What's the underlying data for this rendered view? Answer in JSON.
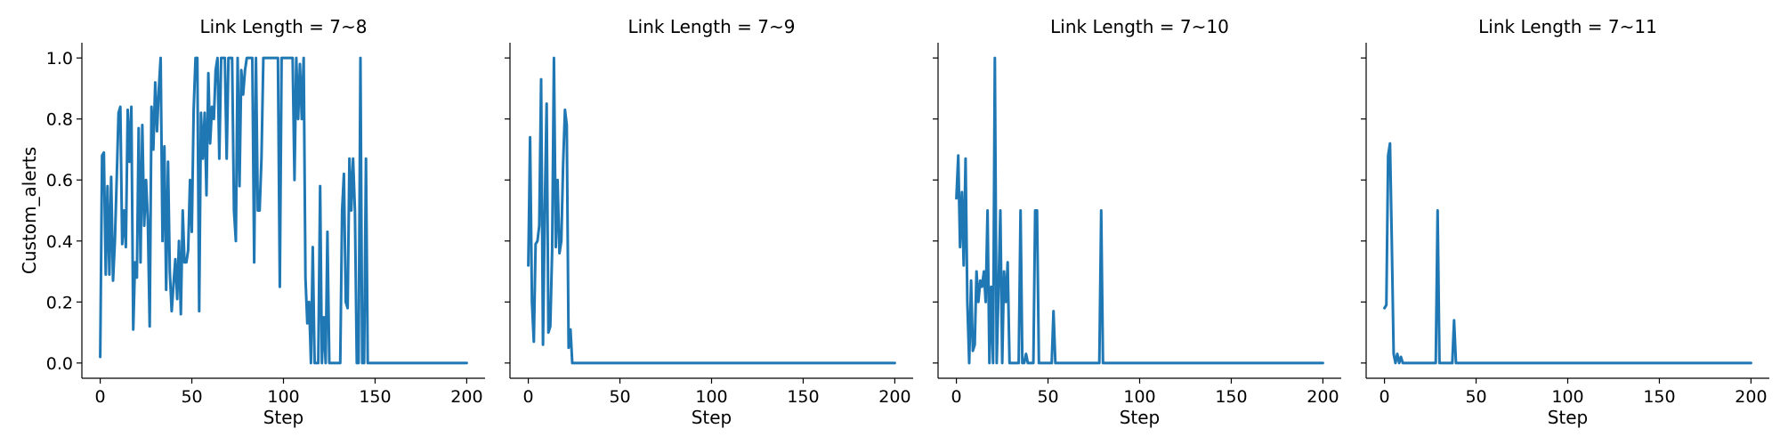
{
  "chart_data": [
    {
      "type": "line",
      "title": "Link Length = 7~8",
      "xlabel": "Step",
      "ylabel": "Custom_alerts",
      "xlim": [
        -10,
        210
      ],
      "ylim": [
        -0.05,
        1.05
      ],
      "xticks": [
        0,
        50,
        100,
        150,
        200
      ],
      "yticks": [
        0.0,
        0.2,
        0.4,
        0.6,
        0.8,
        1.0
      ],
      "show_yticklabels": true,
      "grid": false,
      "color": "#1f77b4",
      "points": [
        [
          0,
          0.02
        ],
        [
          1,
          0.68
        ],
        [
          2,
          0.69
        ],
        [
          3,
          0.29
        ],
        [
          4,
          0.58
        ],
        [
          5,
          0.29
        ],
        [
          6,
          0.61
        ],
        [
          7,
          0.27
        ],
        [
          8,
          0.4
        ],
        [
          9,
          0.6
        ],
        [
          10,
          0.82
        ],
        [
          11,
          0.84
        ],
        [
          12,
          0.39
        ],
        [
          13,
          0.5
        ],
        [
          14,
          0.38
        ],
        [
          15,
          0.83
        ],
        [
          16,
          0.66
        ],
        [
          17,
          0.84
        ],
        [
          18,
          0.11
        ],
        [
          19,
          0.33
        ],
        [
          20,
          0.28
        ],
        [
          21,
          0.77
        ],
        [
          22,
          0.33
        ],
        [
          23,
          0.78
        ],
        [
          24,
          0.45
        ],
        [
          25,
          0.6
        ],
        [
          26,
          0.47
        ],
        [
          27,
          0.12
        ],
        [
          28,
          0.84
        ],
        [
          29,
          0.7
        ],
        [
          30,
          0.92
        ],
        [
          31,
          0.76
        ],
        [
          32,
          0.9
        ],
        [
          33,
          1.0
        ],
        [
          34,
          0.4
        ],
        [
          35,
          0.71
        ],
        [
          36,
          0.24
        ],
        [
          37,
          0.66
        ],
        [
          38,
          0.3
        ],
        [
          39,
          0.17
        ],
        [
          40,
          0.26
        ],
        [
          41,
          0.34
        ],
        [
          42,
          0.21
        ],
        [
          43,
          0.4
        ],
        [
          44,
          0.16
        ],
        [
          45,
          0.5
        ],
        [
          46,
          0.33
        ],
        [
          47,
          0.33
        ],
        [
          48,
          0.37
        ],
        [
          49,
          0.6
        ],
        [
          50,
          0.43
        ],
        [
          51,
          0.83
        ],
        [
          52,
          1.0
        ],
        [
          53,
          1.0
        ],
        [
          54,
          0.17
        ],
        [
          55,
          0.82
        ],
        [
          56,
          0.67
        ],
        [
          57,
          0.82
        ],
        [
          58,
          0.55
        ],
        [
          59,
          0.95
        ],
        [
          60,
          0.72
        ],
        [
          61,
          0.84
        ],
        [
          62,
          0.8
        ],
        [
          63,
          0.96
        ],
        [
          64,
          1.0
        ],
        [
          65,
          0.67
        ],
        [
          66,
          1.0
        ],
        [
          67,
          1.0
        ],
        [
          68,
          1.0
        ],
        [
          69,
          0.67
        ],
        [
          70,
          1.0
        ],
        [
          71,
          1.0
        ],
        [
          72,
          1.0
        ],
        [
          73,
          0.5
        ],
        [
          74,
          0.4
        ],
        [
          75,
          1.0
        ],
        [
          76,
          0.58
        ],
        [
          77,
          0.96
        ],
        [
          78,
          0.88
        ],
        [
          79,
          0.96
        ],
        [
          80,
          1.0
        ],
        [
          81,
          1.0
        ],
        [
          82,
          1.0
        ],
        [
          83,
          1.0
        ],
        [
          84,
          0.33
        ],
        [
          85,
          1.0
        ],
        [
          86,
          0.5
        ],
        [
          87,
          0.5
        ],
        [
          88,
          0.67
        ],
        [
          89,
          1.0
        ],
        [
          90,
          1.0
        ],
        [
          91,
          1.0
        ],
        [
          92,
          1.0
        ],
        [
          93,
          1.0
        ],
        [
          94,
          1.0
        ],
        [
          95,
          1.0
        ],
        [
          96,
          1.0
        ],
        [
          97,
          1.0
        ],
        [
          98,
          0.25
        ],
        [
          99,
          1.0
        ],
        [
          100,
          1.0
        ],
        [
          101,
          1.0
        ],
        [
          102,
          1.0
        ],
        [
          103,
          1.0
        ],
        [
          104,
          1.0
        ],
        [
          105,
          1.0
        ],
        [
          106,
          0.6
        ],
        [
          107,
          1.0
        ],
        [
          108,
          0.8
        ],
        [
          109,
          0.98
        ],
        [
          110,
          0.8
        ],
        [
          111,
          1.0
        ],
        [
          112,
          0.28
        ],
        [
          113,
          0.13
        ],
        [
          114,
          0.2
        ],
        [
          115,
          0.0
        ],
        [
          116,
          0.38
        ],
        [
          117,
          0.0
        ],
        [
          118,
          0.0
        ],
        [
          119,
          0.0
        ],
        [
          120,
          0.58
        ],
        [
          121,
          0.0
        ],
        [
          122,
          0.15
        ],
        [
          123,
          0.0
        ],
        [
          124,
          0.43
        ],
        [
          125,
          0.0
        ],
        [
          126,
          0.0
        ],
        [
          127,
          0.0
        ],
        [
          128,
          0.0
        ],
        [
          129,
          0.0
        ],
        [
          130,
          0.0
        ],
        [
          131,
          0.0
        ],
        [
          132,
          0.5
        ],
        [
          133,
          0.62
        ],
        [
          134,
          0.2
        ],
        [
          135,
          0.18
        ],
        [
          136,
          0.67
        ],
        [
          137,
          0.5
        ],
        [
          138,
          0.67
        ],
        [
          139,
          0.5
        ],
        [
          140,
          0.0
        ],
        [
          141,
          0.0
        ],
        [
          142,
          1.0
        ],
        [
          143,
          0.0
        ],
        [
          144,
          0.0
        ],
        [
          145,
          0.67
        ],
        [
          146,
          0.0
        ],
        [
          147,
          0.0
        ],
        [
          150,
          0.0
        ],
        [
          200,
          0.0
        ]
      ]
    },
    {
      "type": "line",
      "title": "Link Length = 7~9",
      "xlabel": "Step",
      "ylabel": "",
      "xlim": [
        -10,
        210
      ],
      "ylim": [
        -0.05,
        1.05
      ],
      "xticks": [
        0,
        50,
        100,
        150,
        200
      ],
      "yticks": [
        0.0,
        0.2,
        0.4,
        0.6,
        0.8,
        1.0
      ],
      "show_yticklabels": false,
      "grid": false,
      "color": "#1f77b4",
      "points": [
        [
          0,
          0.32
        ],
        [
          1,
          0.74
        ],
        [
          2,
          0.2
        ],
        [
          3,
          0.07
        ],
        [
          4,
          0.39
        ],
        [
          5,
          0.4
        ],
        [
          6,
          0.45
        ],
        [
          7,
          0.93
        ],
        [
          8,
          0.06
        ],
        [
          9,
          0.5
        ],
        [
          10,
          0.85
        ],
        [
          11,
          0.1
        ],
        [
          12,
          0.12
        ],
        [
          13,
          0.37
        ],
        [
          14,
          1.0
        ],
        [
          15,
          0.38
        ],
        [
          16,
          0.6
        ],
        [
          17,
          0.36
        ],
        [
          18,
          0.4
        ],
        [
          19,
          0.65
        ],
        [
          20,
          0.83
        ],
        [
          21,
          0.78
        ],
        [
          22,
          0.05
        ],
        [
          23,
          0.11
        ],
        [
          24,
          0.0
        ],
        [
          100,
          0.0
        ],
        [
          150,
          0.0
        ],
        [
          200,
          0.0
        ]
      ]
    },
    {
      "type": "line",
      "title": "Link Length = 7~10",
      "xlabel": "Step",
      "ylabel": "",
      "xlim": [
        -10,
        210
      ],
      "ylim": [
        -0.05,
        1.05
      ],
      "xticks": [
        0,
        50,
        100,
        150,
        200
      ],
      "yticks": [
        0.0,
        0.2,
        0.4,
        0.6,
        0.8,
        1.0
      ],
      "show_yticklabels": false,
      "grid": false,
      "color": "#1f77b4",
      "points": [
        [
          0,
          0.54
        ],
        [
          1,
          0.68
        ],
        [
          2,
          0.38
        ],
        [
          3,
          0.56
        ],
        [
          4,
          0.32
        ],
        [
          5,
          0.67
        ],
        [
          6,
          0.2
        ],
        [
          7,
          0.0
        ],
        [
          8,
          0.27
        ],
        [
          9,
          0.04
        ],
        [
          10,
          0.06
        ],
        [
          11,
          0.3
        ],
        [
          12,
          0.2
        ],
        [
          13,
          0.27
        ],
        [
          14,
          0.25
        ],
        [
          15,
          0.3
        ],
        [
          16,
          0.2
        ],
        [
          17,
          0.5
        ],
        [
          18,
          0.0
        ],
        [
          19,
          0.25
        ],
        [
          20,
          0.0
        ],
        [
          21,
          1.0
        ],
        [
          22,
          0.0
        ],
        [
          23,
          0.25
        ],
        [
          24,
          0.5
        ],
        [
          25,
          0.0
        ],
        [
          26,
          0.3
        ],
        [
          27,
          0.2
        ],
        [
          28,
          0.33
        ],
        [
          29,
          0.0
        ],
        [
          30,
          0.0
        ],
        [
          31,
          0.0
        ],
        [
          32,
          0.0
        ],
        [
          33,
          0.0
        ],
        [
          34,
          0.0
        ],
        [
          35,
          0.5
        ],
        [
          36,
          0.0
        ],
        [
          37,
          0.0
        ],
        [
          38,
          0.03
        ],
        [
          39,
          0.0
        ],
        [
          40,
          0.0
        ],
        [
          41,
          0.0
        ],
        [
          42,
          0.0
        ],
        [
          43,
          0.5
        ],
        [
          44,
          0.5
        ],
        [
          45,
          0.0
        ],
        [
          46,
          0.0
        ],
        [
          47,
          0.0
        ],
        [
          48,
          0.0
        ],
        [
          49,
          0.0
        ],
        [
          50,
          0.0
        ],
        [
          51,
          0.0
        ],
        [
          52,
          0.0
        ],
        [
          53,
          0.17
        ],
        [
          54,
          0.0
        ],
        [
          55,
          0.0
        ],
        [
          78,
          0.0
        ],
        [
          79,
          0.5
        ],
        [
          80,
          0.0
        ],
        [
          100,
          0.0
        ],
        [
          150,
          0.0
        ],
        [
          200,
          0.0
        ]
      ]
    },
    {
      "type": "line",
      "title": "Link Length = 7~11",
      "xlabel": "Step",
      "ylabel": "",
      "xlim": [
        -10,
        210
      ],
      "ylim": [
        -0.05,
        1.05
      ],
      "xticks": [
        0,
        50,
        100,
        150,
        200
      ],
      "yticks": [
        0.0,
        0.2,
        0.4,
        0.6,
        0.8,
        1.0
      ],
      "show_yticklabels": false,
      "grid": false,
      "color": "#1f77b4",
      "points": [
        [
          0,
          0.18
        ],
        [
          1,
          0.19
        ],
        [
          2,
          0.68
        ],
        [
          3,
          0.72
        ],
        [
          4,
          0.4
        ],
        [
          5,
          0.03
        ],
        [
          6,
          0.0
        ],
        [
          7,
          0.03
        ],
        [
          8,
          0.0
        ],
        [
          9,
          0.02
        ],
        [
          10,
          0.0
        ],
        [
          20,
          0.0
        ],
        [
          28,
          0.0
        ],
        [
          29,
          0.5
        ],
        [
          30,
          0.0
        ],
        [
          35,
          0.0
        ],
        [
          37,
          0.0
        ],
        [
          38,
          0.14
        ],
        [
          39,
          0.0
        ],
        [
          40,
          0.0
        ],
        [
          50,
          0.0
        ],
        [
          100,
          0.0
        ],
        [
          150,
          0.0
        ],
        [
          200,
          0.0
        ]
      ]
    }
  ]
}
